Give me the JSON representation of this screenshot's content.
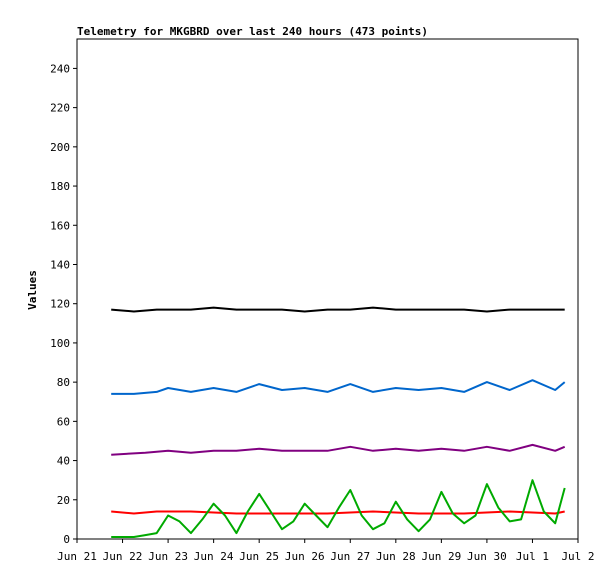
{
  "chart_data": {
    "type": "line",
    "title": "Telemetry for MKGBRD over last 240 hours (473 points)",
    "xlabel": "",
    "ylabel": "Values",
    "ylim": [
      0,
      255
    ],
    "yticks": [
      0,
      20,
      40,
      60,
      80,
      100,
      120,
      140,
      160,
      180,
      200,
      220,
      240
    ],
    "xlim": [
      "Jun 21 00:00",
      "Jul 2 00:00"
    ],
    "xticks": [
      "Jun 21",
      "Jun 22",
      "Jun 23",
      "Jun 24",
      "Jun 25",
      "Jun 26",
      "Jun 27",
      "Jun 28",
      "Jun 29",
      "Jun 30",
      "Jul 1",
      "Jul 2"
    ],
    "grid": false,
    "legend": "none",
    "series": [
      {
        "color": "#000000",
        "x": [
          "Jun 21 18:00",
          "Jun 22 06:00",
          "Jun 22 18:00",
          "Jun 23 12:00",
          "Jun 24 00:00",
          "Jun 24 12:00",
          "Jun 25 00:00",
          "Jun 25 12:00",
          "Jun 26 00:00",
          "Jun 26 12:00",
          "Jun 27 00:00",
          "Jun 27 12:00",
          "Jun 28 00:00",
          "Jun 28 12:00",
          "Jun 29 00:00",
          "Jun 29 12:00",
          "Jun 30 00:00",
          "Jun 30 12:00",
          "Jul 1 00:00",
          "Jul 1 12:00",
          "Jul 1 17:00"
        ],
        "y": [
          117,
          116,
          117,
          117,
          118,
          117,
          117,
          117,
          116,
          117,
          117,
          118,
          117,
          117,
          117,
          117,
          116,
          117,
          117,
          117,
          117
        ]
      },
      {
        "color": "#0066cc",
        "x": [
          "Jun 21 18:00",
          "Jun 22 06:00",
          "Jun 22 18:00",
          "Jun 23 00:00",
          "Jun 23 12:00",
          "Jun 24 00:00",
          "Jun 24 12:00",
          "Jun 25 00:00",
          "Jun 25 12:00",
          "Jun 26 00:00",
          "Jun 26 12:00",
          "Jun 27 00:00",
          "Jun 27 12:00",
          "Jun 28 00:00",
          "Jun 28 12:00",
          "Jun 29 00:00",
          "Jun 29 12:00",
          "Jun 30 00:00",
          "Jun 30 12:00",
          "Jul 1 00:00",
          "Jul 1 12:00",
          "Jul 1 17:00"
        ],
        "y": [
          74,
          74,
          75,
          77,
          75,
          77,
          75,
          79,
          76,
          77,
          75,
          79,
          75,
          77,
          76,
          77,
          75,
          80,
          76,
          81,
          76,
          80
        ]
      },
      {
        "color": "#800080",
        "x": [
          "Jun 21 18:00",
          "Jun 22 12:00",
          "Jun 23 00:00",
          "Jun 23 12:00",
          "Jun 24 00:00",
          "Jun 24 12:00",
          "Jun 25 00:00",
          "Jun 25 12:00",
          "Jun 26 00:00",
          "Jun 26 12:00",
          "Jun 27 00:00",
          "Jun 27 12:00",
          "Jun 28 00:00",
          "Jun 28 12:00",
          "Jun 29 00:00",
          "Jun 29 12:00",
          "Jun 30 00:00",
          "Jun 30 12:00",
          "Jul 1 00:00",
          "Jul 1 12:00",
          "Jul 1 17:00"
        ],
        "y": [
          43,
          44,
          45,
          44,
          45,
          45,
          46,
          45,
          45,
          45,
          47,
          45,
          46,
          45,
          46,
          45,
          47,
          45,
          48,
          45,
          47
        ]
      },
      {
        "color": "#ff0000",
        "x": [
          "Jun 21 18:00",
          "Jun 22 06:00",
          "Jun 22 18:00",
          "Jun 23 12:00",
          "Jun 24 12:00",
          "Jun 25 12:00",
          "Jun 26 12:00",
          "Jun 27 12:00",
          "Jun 28 12:00",
          "Jun 29 12:00",
          "Jun 30 12:00",
          "Jul 1 12:00",
          "Jul 1 17:00"
        ],
        "y": [
          14,
          13,
          14,
          14,
          13,
          13,
          13,
          14,
          13,
          13,
          14,
          13,
          14
        ]
      },
      {
        "color": "#00aa00",
        "x": [
          "Jun 21 18:00",
          "Jun 22 06:00",
          "Jun 22 12:00",
          "Jun 22 18:00",
          "Jun 23 00:00",
          "Jun 23 06:00",
          "Jun 23 12:00",
          "Jun 23 18:00",
          "Jun 24 00:00",
          "Jun 24 06:00",
          "Jun 24 12:00",
          "Jun 24 18:00",
          "Jun 25 00:00",
          "Jun 25 06:00",
          "Jun 25 12:00",
          "Jun 25 18:00",
          "Jun 26 00:00",
          "Jun 26 06:00",
          "Jun 26 12:00",
          "Jun 26 18:00",
          "Jun 27 00:00",
          "Jun 27 06:00",
          "Jun 27 12:00",
          "Jun 27 18:00",
          "Jun 28 00:00",
          "Jun 28 06:00",
          "Jun 28 12:00",
          "Jun 28 18:00",
          "Jun 29 00:00",
          "Jun 29 06:00",
          "Jun 29 12:00",
          "Jun 29 18:00",
          "Jun 30 00:00",
          "Jun 30 06:00",
          "Jun 30 12:00",
          "Jun 30 18:00",
          "Jul 1 00:00",
          "Jul 1 06:00",
          "Jul 1 12:00",
          "Jul 1 17:00"
        ],
        "y": [
          1,
          1,
          2,
          3,
          12,
          9,
          3,
          10,
          18,
          12,
          3,
          14,
          23,
          14,
          5,
          9,
          18,
          12,
          6,
          16,
          25,
          12,
          5,
          8,
          19,
          10,
          4,
          10,
          24,
          13,
          8,
          12,
          28,
          16,
          9,
          10,
          30,
          14,
          8,
          26
        ]
      }
    ]
  }
}
